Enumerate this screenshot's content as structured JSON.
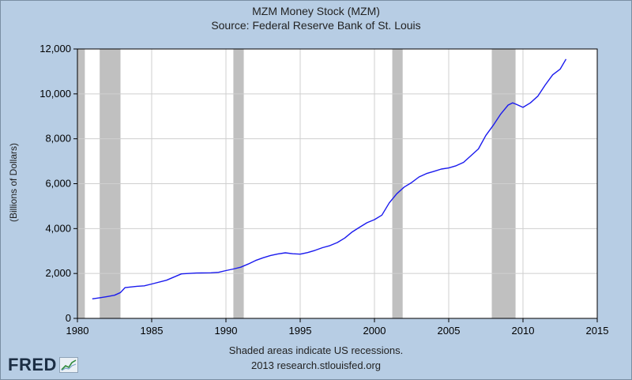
{
  "chart_data": {
    "type": "line",
    "title": "MZM Money Stock (MZM)",
    "subtitle": "Source: Federal Reserve Bank of St. Louis",
    "ylabel": "(Billions of Dollars)",
    "xlabel": "",
    "xlim": [
      1980,
      2015
    ],
    "ylim": [
      0,
      12000
    ],
    "x_ticks": [
      1980,
      1985,
      1990,
      1995,
      2000,
      2005,
      2010,
      2015
    ],
    "y_ticks": [
      0,
      2000,
      4000,
      6000,
      8000,
      10000,
      12000
    ],
    "x_tick_labels": [
      "1980",
      "1985",
      "1990",
      "1995",
      "2000",
      "2005",
      "2010",
      "2015"
    ],
    "y_tick_labels": [
      "0",
      "2,000",
      "4,000",
      "6,000",
      "8,000",
      "10,000",
      "12,000"
    ],
    "grid": true,
    "recessions": [
      [
        1980.0,
        1980.5
      ],
      [
        1981.5,
        1982.9
      ],
      [
        1990.5,
        1991.2
      ],
      [
        2001.2,
        2001.9
      ],
      [
        2007.9,
        2009.5
      ]
    ],
    "series": [
      {
        "color": "#1a1aee",
        "x": [
          1981.0,
          1981.5,
          1982.0,
          1982.5,
          1982.9,
          1983.2,
          1984.0,
          1984.5,
          1985.0,
          1986.0,
          1987.0,
          1988.0,
          1989.0,
          1989.5,
          1990.0,
          1990.5,
          1991.0,
          1991.5,
          1992.0,
          1992.5,
          1993.0,
          1993.5,
          1994.0,
          1994.5,
          1995.0,
          1995.5,
          1996.0,
          1996.5,
          1997.0,
          1997.5,
          1998.0,
          1998.5,
          1999.0,
          1999.5,
          2000.0,
          2000.5,
          2001.0,
          2001.5,
          2002.0,
          2002.5,
          2003.0,
          2003.5,
          2004.0,
          2004.5,
          2005.0,
          2005.5,
          2006.0,
          2006.5,
          2007.0,
          2007.5,
          2008.0,
          2008.5,
          2009.0,
          2009.3,
          2009.5,
          2010.0,
          2010.5,
          2011.0,
          2011.5,
          2012.0,
          2012.5,
          2012.9
        ],
        "y": [
          870,
          920,
          970,
          1030,
          1150,
          1370,
          1430,
          1450,
          1530,
          1700,
          1980,
          2020,
          2030,
          2050,
          2130,
          2200,
          2280,
          2420,
          2580,
          2700,
          2800,
          2870,
          2920,
          2880,
          2860,
          2930,
          3030,
          3150,
          3240,
          3380,
          3580,
          3850,
          4060,
          4260,
          4400,
          4600,
          5150,
          5550,
          5850,
          6050,
          6300,
          6450,
          6550,
          6650,
          6700,
          6800,
          6950,
          7250,
          7550,
          8150,
          8600,
          9100,
          9500,
          9600,
          9550,
          9400,
          9600,
          9900,
          10400,
          10850,
          11100,
          11550
        ]
      }
    ]
  },
  "footer": {
    "note": "Shaded areas indicate US recessions.",
    "source": "2013 research.stlouisfed.org"
  },
  "logo": {
    "text": "FRED",
    "icon": "chart-icon"
  }
}
